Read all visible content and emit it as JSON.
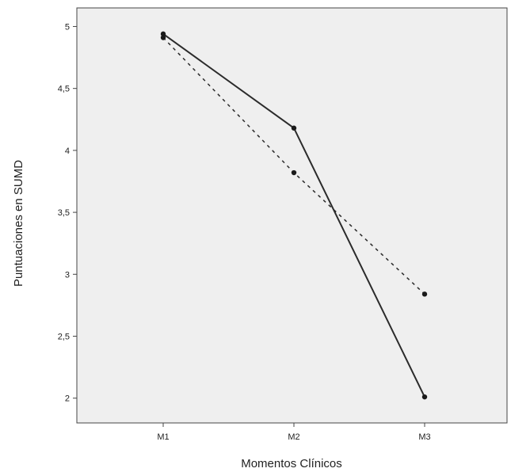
{
  "chart_data": {
    "type": "line",
    "title": "",
    "xlabel": "Momentos Clínicos",
    "ylabel": "Puntuaciones en SUMD",
    "categories": [
      "M1",
      "M2",
      "M3"
    ],
    "ylim": [
      1.8,
      5.15
    ],
    "yticks": [
      2,
      2.5,
      3,
      3.5,
      4,
      4.5,
      5
    ],
    "ytick_labels": [
      "2",
      "2,5",
      "3",
      "3,5",
      "4",
      "4,5",
      "5"
    ],
    "grid": false,
    "legend": "none",
    "series": [
      {
        "style": "solid",
        "values": [
          4.94,
          4.18,
          2.01
        ]
      },
      {
        "style": "dashed",
        "values": [
          4.91,
          3.82,
          2.84
        ]
      }
    ],
    "colors": {
      "plot_background": "#efefef",
      "line": "#2b2b2b",
      "marker": "#1a1a1a"
    }
  }
}
